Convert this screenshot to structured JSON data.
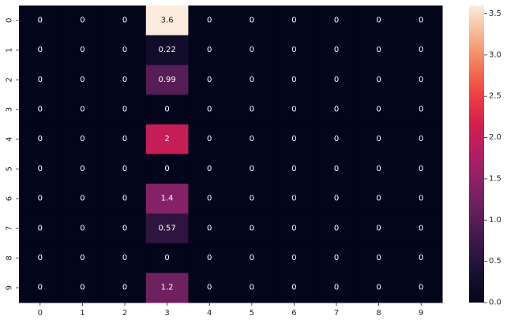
{
  "chart_data": {
    "type": "heatmap",
    "x_categories": [
      "0",
      "1",
      "2",
      "3",
      "4",
      "5",
      "6",
      "7",
      "8",
      "9"
    ],
    "y_categories": [
      "0",
      "1",
      "2",
      "3",
      "4",
      "5",
      "6",
      "7",
      "8",
      "9"
    ],
    "values": [
      [
        0,
        0,
        0,
        3.6,
        0,
        0,
        0,
        0,
        0,
        0
      ],
      [
        0,
        0,
        0,
        0.22,
        0,
        0,
        0,
        0,
        0,
        0
      ],
      [
        0,
        0,
        0,
        0.99,
        0,
        0,
        0,
        0,
        0,
        0
      ],
      [
        0,
        0,
        0,
        0,
        0,
        0,
        0,
        0,
        0,
        0
      ],
      [
        0,
        0,
        0,
        2,
        0,
        0,
        0,
        0,
        0,
        0
      ],
      [
        0,
        0,
        0,
        0,
        0,
        0,
        0,
        0,
        0,
        0
      ],
      [
        0,
        0,
        0,
        1.4,
        0,
        0,
        0,
        0,
        0,
        0
      ],
      [
        0,
        0,
        0,
        0.57,
        0,
        0,
        0,
        0,
        0,
        0
      ],
      [
        0,
        0,
        0,
        0,
        0,
        0,
        0,
        0,
        0,
        0
      ],
      [
        0,
        0,
        0,
        1.2,
        0,
        0,
        0,
        0,
        0,
        0
      ]
    ],
    "cell_labels": [
      [
        "0",
        "0",
        "0",
        "3.6",
        "0",
        "0",
        "0",
        "0",
        "0",
        "0"
      ],
      [
        "0",
        "0",
        "0",
        "0.22",
        "0",
        "0",
        "0",
        "0",
        "0",
        "0"
      ],
      [
        "0",
        "0",
        "0",
        "0.99",
        "0",
        "0",
        "0",
        "0",
        "0",
        "0"
      ],
      [
        "0",
        "0",
        "0",
        "0",
        "0",
        "0",
        "0",
        "0",
        "0",
        "0"
      ],
      [
        "0",
        "0",
        "0",
        "2",
        "0",
        "0",
        "0",
        "0",
        "0",
        "0"
      ],
      [
        "0",
        "0",
        "0",
        "0",
        "0",
        "0",
        "0",
        "0",
        "0",
        "0"
      ],
      [
        "0",
        "0",
        "0",
        "1.4",
        "0",
        "0",
        "0",
        "0",
        "0",
        "0"
      ],
      [
        "0",
        "0",
        "0",
        "0.57",
        "0",
        "0",
        "0",
        "0",
        "0",
        "0"
      ],
      [
        "0",
        "0",
        "0",
        "0",
        "0",
        "0",
        "0",
        "0",
        "0",
        "0"
      ],
      [
        "0",
        "0",
        "0",
        "1.2",
        "0",
        "0",
        "0",
        "0",
        "0",
        "0"
      ]
    ],
    "colorbar": {
      "min": 0,
      "max": 3.6,
      "ticks": [
        "0.0",
        "0.5",
        "1.0",
        "1.5",
        "2.0",
        "2.5",
        "3.0",
        "3.5"
      ],
      "colormap": "rocket"
    },
    "title": "",
    "xlabel": "",
    "ylabel": "",
    "grid": false
  }
}
